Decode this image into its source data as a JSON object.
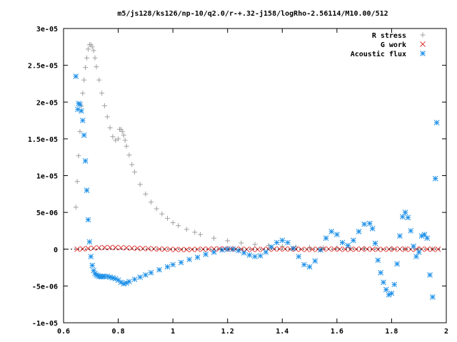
{
  "chart_data": {
    "type": "scatter",
    "title": "m5/js128/ks126/np-10/q2.0/r-+.32-j158/logRho-2.56114/M10.00/512",
    "xlabel": "",
    "ylabel": "",
    "xlim": [
      0.6,
      2.0
    ],
    "ylim": [
      -1e-05,
      3e-05
    ],
    "x_ticks": [
      0.6,
      0.8,
      1.0,
      1.2,
      1.4,
      1.6,
      1.8,
      2.0
    ],
    "x_tick_labels": [
      "0.6",
      "0.8",
      "1",
      "1.2",
      "1.4",
      "1.6",
      "1.8",
      "2"
    ],
    "y_ticks": [
      -1e-05,
      -5e-06,
      0,
      5e-06,
      1e-05,
      1.5e-05,
      2e-05,
      2.5e-05,
      3e-05
    ],
    "y_tick_labels": [
      "-1e-05",
      "-5e-06",
      "0",
      "5e-06",
      "1e-05",
      "1.5e-05",
      "2e-05",
      "2.5e-05",
      "3e-05"
    ],
    "grid": false,
    "legend_position": "top-right",
    "series": [
      {
        "name": "R stress",
        "marker": "plus",
        "color": "#a0a0a0",
        "x": [
          0.645,
          0.65,
          0.655,
          0.66,
          0.665,
          0.67,
          0.675,
          0.68,
          0.685,
          0.69,
          0.695,
          0.7,
          0.705,
          0.71,
          0.715,
          0.72,
          0.73,
          0.74,
          0.75,
          0.76,
          0.77,
          0.78,
          0.79,
          0.8,
          0.805,
          0.81,
          0.815,
          0.82,
          0.825,
          0.83,
          0.84,
          0.85,
          0.86,
          0.88,
          0.9,
          0.92,
          0.94,
          0.96,
          0.98,
          1.0,
          1.02,
          1.05,
          1.08,
          1.1,
          1.15,
          1.2,
          1.25,
          1.3,
          1.35,
          1.4,
          1.45,
          1.5,
          1.55,
          1.6,
          1.65,
          1.7,
          1.75,
          1.8,
          1.85,
          1.9,
          1.95
        ],
        "y": [
          5.7e-06,
          9.2e-06,
          1.27e-05,
          1.6e-05,
          1.95e-05,
          2.12e-05,
          2.3e-05,
          2.47e-05,
          2.6e-05,
          2.72e-05,
          2.78e-05,
          2.78e-05,
          2.75e-05,
          2.7e-05,
          2.6e-05,
          2.48e-05,
          2.3e-05,
          2.12e-05,
          1.95e-05,
          1.8e-05,
          1.65e-05,
          1.53e-05,
          1.48e-05,
          1.5e-05,
          1.63e-05,
          1.63e-05,
          1.6e-05,
          1.55e-05,
          1.48e-05,
          1.4e-05,
          1.28e-05,
          1.15e-05,
          1.05e-05,
          8.8e-06,
          7.5e-06,
          6.4e-06,
          5.5e-06,
          4.8e-06,
          4.2e-06,
          3.6e-06,
          3.2e-06,
          2.7e-06,
          2.3e-06,
          2e-06,
          1.5e-06,
          1.15e-06,
          8.5e-07,
          6.5e-07,
          5e-07,
          4e-07,
          3e-07,
          2.4e-07,
          2e-07,
          1.6e-07,
          1.3e-07,
          1e-07,
          8e-08,
          6e-08,
          5e-08,
          4e-08,
          3e-08
        ]
      },
      {
        "name": "G work",
        "marker": "cross",
        "color": "#e03030",
        "x": [
          0.65,
          0.67,
          0.69,
          0.71,
          0.73,
          0.75,
          0.77,
          0.79,
          0.81,
          0.83,
          0.85,
          0.87,
          0.89,
          0.91,
          0.93,
          0.95,
          0.97,
          0.99,
          1.01,
          1.03,
          1.05,
          1.07,
          1.09,
          1.11,
          1.13,
          1.15,
          1.17,
          1.19,
          1.21,
          1.23,
          1.25,
          1.27,
          1.29,
          1.31,
          1.33,
          1.35,
          1.37,
          1.39,
          1.41,
          1.43,
          1.45,
          1.47,
          1.49,
          1.51,
          1.53,
          1.55,
          1.57,
          1.59,
          1.61,
          1.63,
          1.65,
          1.67,
          1.69,
          1.71,
          1.73,
          1.75,
          1.77,
          1.79,
          1.81,
          1.83,
          1.85,
          1.87,
          1.89,
          1.91,
          1.93,
          1.95,
          1.97
        ],
        "y": [
          0,
          5e-08,
          1e-07,
          1.5e-07,
          2e-07,
          2.2e-07,
          2.3e-07,
          2.2e-07,
          2e-07,
          1.8e-07,
          1.5e-07,
          1.2e-07,
          1e-07,
          8e-08,
          5e-08,
          2e-08,
          0,
          -2e-08,
          -4e-08,
          -5e-08,
          -5e-08,
          -4e-08,
          -2e-08,
          0,
          2e-08,
          4e-08,
          5e-08,
          5e-08,
          4e-08,
          2e-08,
          0,
          -2e-08,
          -3e-08,
          -3e-08,
          -2e-08,
          0,
          2e-08,
          3e-08,
          3e-08,
          2e-08,
          0,
          -2e-08,
          -3e-08,
          -2e-08,
          0,
          2e-08,
          3e-08,
          2e-08,
          0,
          -2e-08,
          -2e-08,
          0,
          2e-08,
          2e-08,
          0,
          -2e-08,
          -2e-08,
          0,
          2e-08,
          2e-08,
          0,
          -2e-08,
          0,
          2e-08,
          0,
          -1e-08,
          0
        ]
      },
      {
        "name": "Acoustic flux",
        "marker": "star",
        "color": "#1e90e8",
        "x": [
          0.645,
          0.652,
          0.655,
          0.66,
          0.665,
          0.67,
          0.675,
          0.68,
          0.685,
          0.69,
          0.695,
          0.7,
          0.705,
          0.71,
          0.715,
          0.72,
          0.725,
          0.73,
          0.735,
          0.74,
          0.745,
          0.75,
          0.76,
          0.77,
          0.78,
          0.79,
          0.8,
          0.81,
          0.82,
          0.83,
          0.84,
          0.86,
          0.88,
          0.9,
          0.92,
          0.95,
          0.98,
          1.0,
          1.03,
          1.06,
          1.09,
          1.12,
          1.15,
          1.18,
          1.2,
          1.22,
          1.24,
          1.26,
          1.28,
          1.3,
          1.32,
          1.34,
          1.36,
          1.38,
          1.4,
          1.42,
          1.44,
          1.46,
          1.48,
          1.5,
          1.52,
          1.54,
          1.56,
          1.58,
          1.6,
          1.62,
          1.64,
          1.66,
          1.68,
          1.7,
          1.72,
          1.73,
          1.74,
          1.75,
          1.76,
          1.77,
          1.78,
          1.79,
          1.8,
          1.81,
          1.82,
          1.83,
          1.84,
          1.85,
          1.86,
          1.87,
          1.88,
          1.89,
          1.9,
          1.91,
          1.92,
          1.93,
          1.94,
          1.95,
          1.96,
          1.965
        ],
        "y": [
          2.35e-05,
          1.9e-05,
          1.98e-05,
          1.97e-05,
          1.88e-05,
          1.75e-05,
          1.55e-05,
          1.2e-05,
          8e-06,
          4e-06,
          1e-06,
          -1e-06,
          -2.2e-06,
          -2.9e-06,
          -3.3e-06,
          -3.5e-06,
          -3.6e-06,
          -3.7e-06,
          -3.7e-06,
          -3.75e-06,
          -3.7e-06,
          -3.7e-06,
          -3.7e-06,
          -3.8e-06,
          -3.9e-06,
          -4e-06,
          -4.2e-06,
          -4.5e-06,
          -4.7e-06,
          -4.6e-06,
          -4.4e-06,
          -4.1e-06,
          -3.8e-06,
          -3.5e-06,
          -3.2e-06,
          -2.8e-06,
          -2.4e-06,
          -2.1e-06,
          -1.8e-06,
          -1.4e-06,
          -1.1e-06,
          -7e-07,
          -4e-07,
          -1e-07,
          0,
          0,
          -2e-07,
          -5e-07,
          -8e-07,
          -1e-06,
          -9e-07,
          -4e-07,
          3e-07,
          9e-07,
          1.2e-06,
          9e-07,
          1e-07,
          -1e-06,
          -2.1e-06,
          -2.4e-06,
          -1.6e-06,
          -1e-07,
          1.5e-06,
          2.4e-06,
          2e-06,
          9e-07,
          5e-07,
          1.2e-06,
          2.4e-06,
          3.4e-06,
          3.5e-06,
          2.8e-06,
          8e-07,
          -1.5e-06,
          -3.2e-06,
          -4.5e-06,
          -5.5e-06,
          -6.2e-06,
          -6e-06,
          -4.8e-06,
          -2e-06,
          1.8e-06,
          4.4e-06,
          5e-06,
          4.3e-06,
          2.5e-06,
          4e-07,
          -1e-06,
          -4e-07,
          1.8e-06,
          2e-06,
          1.5e-06,
          -3.5e-06,
          -6.5e-06,
          9.6e-06,
          1.72e-05
        ]
      }
    ]
  }
}
